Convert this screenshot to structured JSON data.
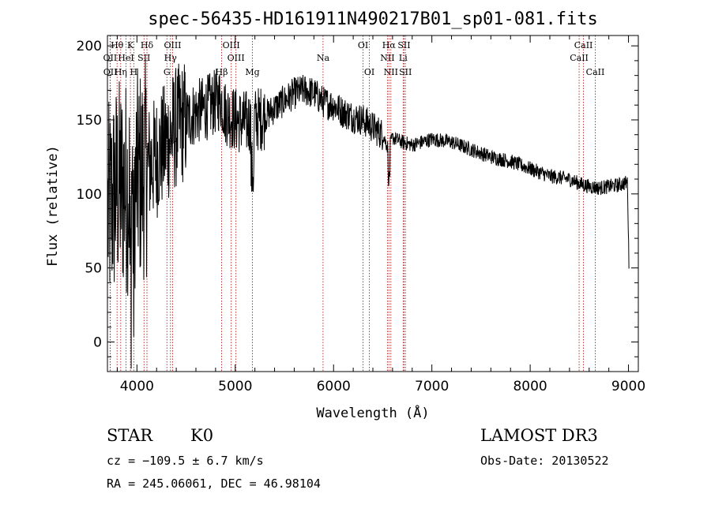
{
  "chart_data": {
    "type": "line",
    "title": "spec-56435-HD161911N490217B01_sp01-081.fits",
    "xlabel": "Wavelength (Å)",
    "ylabel": "Flux (relative)",
    "xlim": [
      3700,
      9100
    ],
    "ylim": [
      -20,
      207
    ],
    "xticks": [
      4000,
      5000,
      6000,
      7000,
      8000,
      9000
    ],
    "yticks": [
      0,
      50,
      100,
      150,
      200
    ],
    "spectrum_anchors": {
      "x": [
        3700,
        3800,
        3900,
        4000,
        4100,
        4200,
        4300,
        4400,
        4500,
        4600,
        4700,
        4800,
        4850,
        4900,
        5000,
        5100,
        5200,
        5300,
        5400,
        5500,
        5600,
        5700,
        5800,
        5900,
        6000,
        6100,
        6200,
        6300,
        6400,
        6500,
        6560,
        6600,
        6700,
        6800,
        6900,
        7000,
        7200,
        7400,
        7600,
        7800,
        8000,
        8200,
        8400,
        8500,
        8600,
        8700,
        8800,
        8900,
        9000
      ],
      "y": [
        85,
        105,
        105,
        110,
        118,
        125,
        135,
        145,
        150,
        155,
        158,
        162,
        165,
        155,
        150,
        148,
        150,
        152,
        158,
        163,
        168,
        170,
        168,
        162,
        160,
        155,
        152,
        150,
        145,
        140,
        130,
        138,
        135,
        133,
        135,
        137,
        135,
        130,
        125,
        122,
        117,
        112,
        110,
        107,
        105,
        104,
        105,
        106,
        108
      ]
    },
    "spectral_lines": [
      {
        "label": "Hθ",
        "x": 3798,
        "row": 1
      },
      {
        "label": "K",
        "x": 3934,
        "row": 1
      },
      {
        "label": "Hδ",
        "x": 4102,
        "row": 1
      },
      {
        "label": "OIII",
        "x": 4363,
        "row": 1
      },
      {
        "label": "OIII",
        "x": 4959,
        "row": 1
      },
      {
        "label": "OI",
        "x": 6300,
        "row": 1
      },
      {
        "label": "Hα",
        "x": 6563,
        "row": 1
      },
      {
        "label": "SII",
        "x": 6717,
        "row": 1
      },
      {
        "label": "CaII",
        "x": 8542,
        "row": 1
      },
      {
        "label": "OII",
        "x": 3727,
        "row": 2
      },
      {
        "label": "HeI",
        "x": 3889,
        "row": 2
      },
      {
        "label": "SII",
        "x": 4072,
        "row": 2
      },
      {
        "label": "Hγ",
        "x": 4341,
        "row": 2
      },
      {
        "label": "OIII",
        "x": 5007,
        "row": 2
      },
      {
        "label": "Na",
        "x": 5893,
        "row": 2
      },
      {
        "label": "NII",
        "x": 6548,
        "row": 2
      },
      {
        "label": "Li",
        "x": 6708,
        "row": 2
      },
      {
        "label": "CaII",
        "x": 8498,
        "row": 2
      },
      {
        "label": "OII",
        "x": 3729,
        "row": 3
      },
      {
        "label": "Hη",
        "x": 3835,
        "row": 3
      },
      {
        "label": "H",
        "x": 3968,
        "row": 3
      },
      {
        "label": "G",
        "x": 4305,
        "row": 3
      },
      {
        "label": "Hβ",
        "x": 4861,
        "row": 3
      },
      {
        "label": "Mg",
        "x": 5175,
        "row": 3
      },
      {
        "label": "OI",
        "x": 6364,
        "row": 3
      },
      {
        "label": "NII",
        "x": 6583,
        "row": 3
      },
      {
        "label": "SII",
        "x": 6731,
        "row": 3
      },
      {
        "label": "CaII",
        "x": 8662,
        "row": 3
      }
    ],
    "colors": {
      "spectrum": "#000000",
      "line_markers": "#b22222"
    }
  },
  "info": {
    "class_label": "STAR",
    "subclass": "K0",
    "survey": "LAMOST DR3",
    "velocity": "cz = −109.5 ± 6.7 km/s",
    "obs_date": "Obs-Date: 20130522",
    "coords": "RA = 245.06061, DEC =  46.98104"
  }
}
